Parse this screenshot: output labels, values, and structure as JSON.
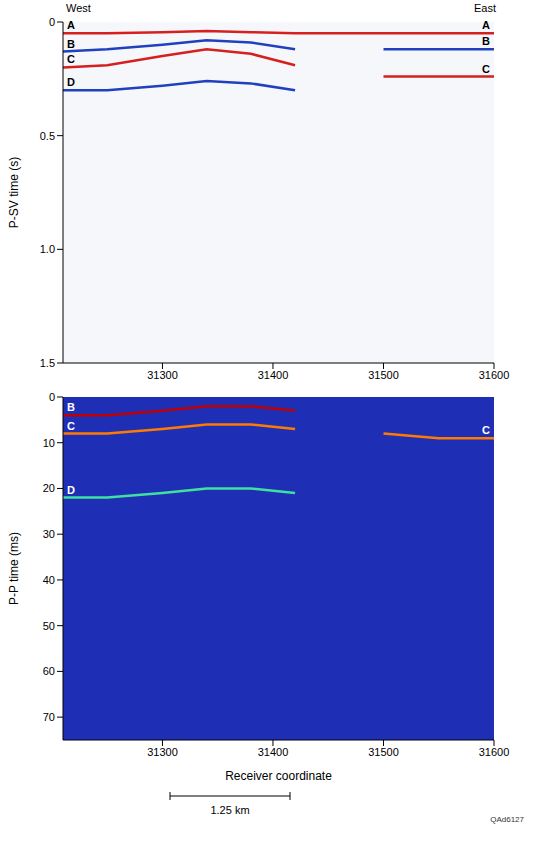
{
  "header": {
    "left": "West",
    "right": "East"
  },
  "chart_data": [
    {
      "type": "line",
      "ylabel": "P-SV time (s)",
      "x": [
        31210,
        31250,
        31300,
        31340,
        31380,
        31420,
        31440,
        31500,
        31550,
        31600
      ],
      "xlim": [
        31210,
        31600
      ],
      "xticks": [
        31300,
        31400,
        31500,
        31600
      ],
      "ylim": [
        0,
        1.5
      ],
      "yticks": [
        0,
        0.5,
        {
          "value": 1,
          "label": "1.0"
        },
        1.5
      ],
      "series": [
        {
          "name": "A",
          "color": "#d62020",
          "values": [
            0.05,
            0.05,
            0.045,
            0.04,
            0.045,
            0.05,
            0.05,
            0.05,
            0.05,
            0.05
          ]
        },
        {
          "name": "B",
          "color": "#2040c0",
          "values": [
            0.13,
            0.12,
            0.1,
            0.08,
            0.09,
            0.12,
            null,
            0.12,
            0.12,
            0.12
          ]
        },
        {
          "name": "C",
          "color": "#d62020",
          "values": [
            0.2,
            0.19,
            0.15,
            0.12,
            0.14,
            0.19,
            null,
            0.24,
            0.24,
            0.24
          ]
        },
        {
          "name": "D",
          "color": "#2040c0",
          "values": [
            0.3,
            0.3,
            0.28,
            0.26,
            0.27,
            0.3,
            null,
            null,
            null,
            null
          ]
        }
      ]
    },
    {
      "type": "line",
      "ylabel": "P-P time (ms)",
      "xlabel": "Receiver coordinate",
      "x": [
        31210,
        31250,
        31300,
        31340,
        31380,
        31420,
        31440,
        31500,
        31550,
        31600
      ],
      "xlim": [
        31210,
        31600
      ],
      "xticks": [
        31300,
        31400,
        31500,
        31600
      ],
      "ylim": [
        0,
        75
      ],
      "yticks": [
        0,
        10,
        20,
        30,
        40,
        50,
        60,
        70
      ],
      "series": [
        {
          "name": "B",
          "color": "#c00000",
          "values": [
            4,
            4,
            3,
            2,
            2,
            3,
            null,
            null,
            null,
            null
          ]
        },
        {
          "name": "C",
          "color": "#ff7a00",
          "values": [
            8,
            8,
            7,
            6,
            6,
            7,
            null,
            8,
            9,
            9
          ]
        },
        {
          "name": "D",
          "color": "#40e0a0",
          "values": [
            22,
            22,
            21,
            20,
            20,
            21,
            null,
            null,
            null,
            null
          ]
        }
      ]
    }
  ],
  "scale_bar": "1.25 km",
  "figure_id": "QAd6127"
}
